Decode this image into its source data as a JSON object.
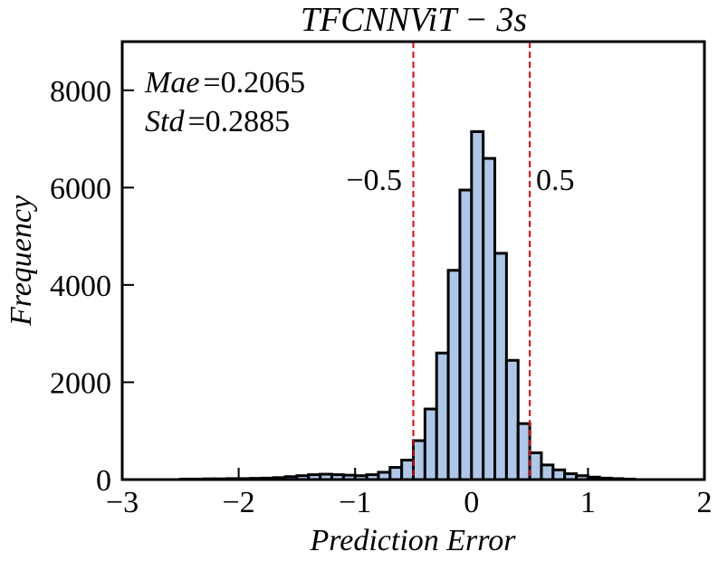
{
  "chart_data": {
    "type": "bar",
    "title": "TFCNNViT − 3s",
    "xlabel": "Prediction Error",
    "ylabel": "Frequency",
    "xlim": [
      -3,
      2
    ],
    "ylim": [
      0,
      9000
    ],
    "xticks": [
      -3,
      -2,
      -1,
      0,
      1,
      2
    ],
    "xtick_labels": [
      "−3",
      "−2",
      "−1",
      "0",
      "1",
      "2"
    ],
    "yticks": [
      0,
      2000,
      4000,
      6000,
      8000
    ],
    "ytick_labels": [
      "0",
      "2000",
      "4000",
      "6000",
      "8000"
    ],
    "bin_width": 0.1,
    "bin_starts": [
      -2.5,
      -2.4,
      -2.3,
      -2.2,
      -2.1,
      -2.0,
      -1.9,
      -1.8,
      -1.7,
      -1.6,
      -1.5,
      -1.4,
      -1.3,
      -1.2,
      -1.1,
      -1.0,
      -0.9,
      -0.8,
      -0.7,
      -0.6,
      -0.5,
      -0.4,
      -0.3,
      -0.2,
      -0.1,
      0.0,
      0.1,
      0.2,
      0.3,
      0.4,
      0.5,
      0.6,
      0.7,
      0.8,
      0.9,
      1.0,
      1.1,
      1.2,
      1.3
    ],
    "values": [
      10,
      10,
      15,
      15,
      20,
      20,
      25,
      30,
      40,
      60,
      80,
      100,
      110,
      100,
      90,
      80,
      100,
      150,
      250,
      400,
      800,
      1450,
      2600,
      4300,
      5950,
      7150,
      6600,
      4650,
      2450,
      1150,
      550,
      300,
      200,
      120,
      80,
      50,
      30,
      20,
      10
    ],
    "bar_fill": "#aec7e8",
    "bar_edge": "#000000",
    "reference_lines": [
      {
        "x": -0.5,
        "label": "−0.5",
        "color": "#e8000b",
        "style": "dashed"
      },
      {
        "x": 0.5,
        "label": "0.5",
        "color": "#e8000b",
        "style": "dashed"
      }
    ],
    "annotations": {
      "mae_label": "Mae",
      "mae_value": "0.2065",
      "std_label": "Std",
      "std_value": "0.2885"
    },
    "grid": false,
    "legend": "none"
  }
}
